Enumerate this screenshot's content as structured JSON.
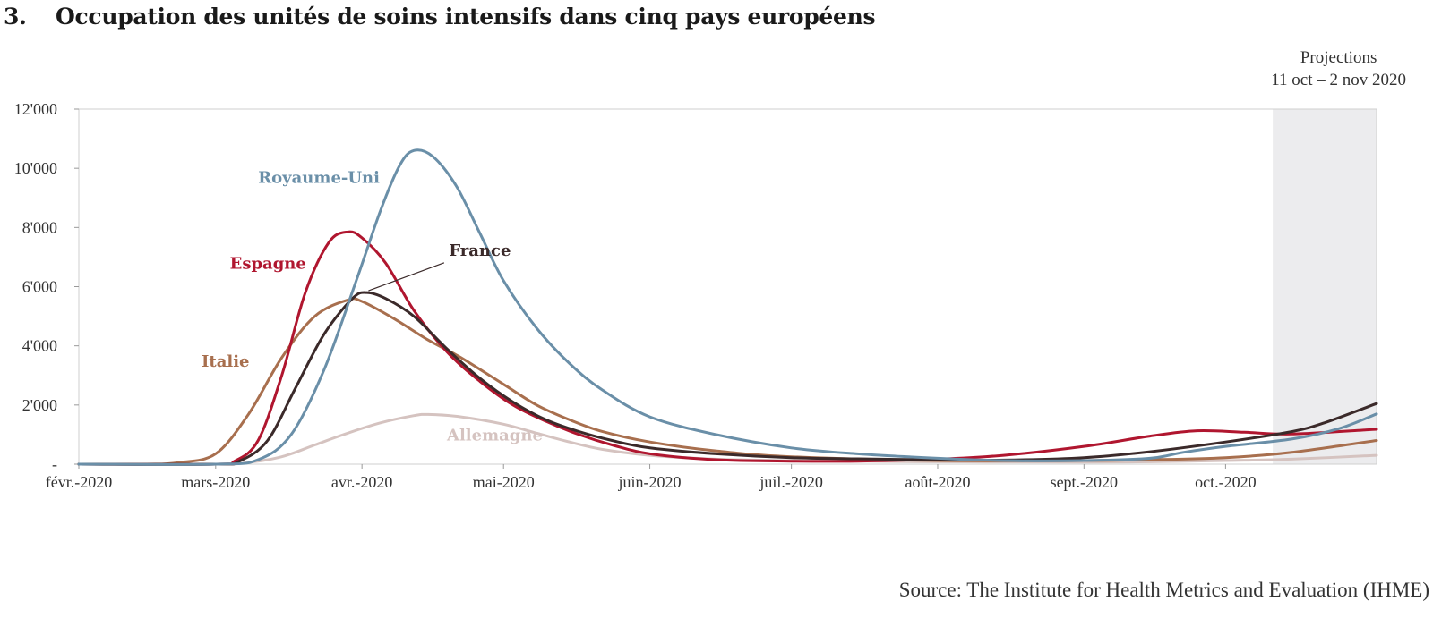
{
  "header": {
    "number": "3.",
    "title": "Occupation des unités de soins intensifs dans cinq pays européens"
  },
  "projection": {
    "line1": "Projections",
    "line2": "11 oct – 2 nov 2020"
  },
  "source": "Source: The Institute for Health Metrics and Evaluation (IHME)",
  "chart_data": {
    "type": "line",
    "title": "Occupation des unités de soins intensifs dans cinq pays européens",
    "xlabel": "",
    "ylabel": "",
    "x_range": [
      "2020-02-01",
      "2020-11-02"
    ],
    "ylim": [
      0,
      12000
    ],
    "y_ticks": [
      0,
      2000,
      4000,
      6000,
      8000,
      10000,
      12000
    ],
    "y_tick_labels": [
      "-",
      "2'000",
      "4'000",
      "6'000",
      "8'000",
      "10'000",
      "12'000"
    ],
    "x_ticks": [
      {
        "date": "2020-02-01",
        "label": "févr.-2020"
      },
      {
        "date": "2020-03-01",
        "label": "mars-2020"
      },
      {
        "date": "2020-04-01",
        "label": "avr.-2020"
      },
      {
        "date": "2020-05-01",
        "label": "mai-2020"
      },
      {
        "date": "2020-06-01",
        "label": "juin-2020"
      },
      {
        "date": "2020-07-01",
        "label": "juil.-2020"
      },
      {
        "date": "2020-08-01",
        "label": "août-2020"
      },
      {
        "date": "2020-09-01",
        "label": "sept.-2020"
      },
      {
        "date": "2020-10-01",
        "label": "oct.-2020"
      }
    ],
    "projection_period": [
      "2020-10-11",
      "2020-11-02"
    ],
    "grid": false,
    "series": [
      {
        "name": "Allemagne",
        "color": "#d5c3c0",
        "points": [
          [
            "2020-02-01",
            0
          ],
          [
            "2020-03-01",
            0
          ],
          [
            "2020-03-08",
            60
          ],
          [
            "2020-03-15",
            250
          ],
          [
            "2020-03-22",
            650
          ],
          [
            "2020-03-29",
            1050
          ],
          [
            "2020-04-05",
            1400
          ],
          [
            "2020-04-12",
            1640
          ],
          [
            "2020-04-15",
            1680
          ],
          [
            "2020-04-22",
            1600
          ],
          [
            "2020-05-01",
            1350
          ],
          [
            "2020-05-08",
            1050
          ],
          [
            "2020-05-15",
            750
          ],
          [
            "2020-05-22",
            500
          ],
          [
            "2020-06-01",
            300
          ],
          [
            "2020-06-15",
            170
          ],
          [
            "2020-07-01",
            120
          ],
          [
            "2020-08-01",
            80
          ],
          [
            "2020-09-01",
            70
          ],
          [
            "2020-09-15",
            80
          ],
          [
            "2020-10-01",
            120
          ],
          [
            "2020-10-15",
            170
          ],
          [
            "2020-11-02",
            300
          ]
        ]
      },
      {
        "name": "Italie",
        "color": "#a86f4e",
        "points": [
          [
            "2020-02-01",
            0
          ],
          [
            "2020-02-15",
            0
          ],
          [
            "2020-02-22",
            50
          ],
          [
            "2020-03-01",
            350
          ],
          [
            "2020-03-08",
            1700
          ],
          [
            "2020-03-15",
            3600
          ],
          [
            "2020-03-22",
            5000
          ],
          [
            "2020-03-29",
            5550
          ],
          [
            "2020-04-01",
            5500
          ],
          [
            "2020-04-08",
            4900
          ],
          [
            "2020-04-15",
            4200
          ],
          [
            "2020-04-22",
            3600
          ],
          [
            "2020-05-01",
            2700
          ],
          [
            "2020-05-08",
            2000
          ],
          [
            "2020-05-15",
            1500
          ],
          [
            "2020-05-22",
            1100
          ],
          [
            "2020-06-01",
            750
          ],
          [
            "2020-06-15",
            450
          ],
          [
            "2020-07-01",
            250
          ],
          [
            "2020-08-01",
            120
          ],
          [
            "2020-09-01",
            120
          ],
          [
            "2020-09-15",
            150
          ],
          [
            "2020-10-01",
            220
          ],
          [
            "2020-10-15",
            400
          ],
          [
            "2020-11-02",
            800
          ]
        ]
      },
      {
        "name": "Espagne",
        "color": "#b0162f",
        "points": [
          [
            "2020-02-01",
            0
          ],
          [
            "2020-03-01",
            0
          ],
          [
            "2020-03-05",
            100
          ],
          [
            "2020-03-10",
            800
          ],
          [
            "2020-03-15",
            3000
          ],
          [
            "2020-03-20",
            5800
          ],
          [
            "2020-03-25",
            7500
          ],
          [
            "2020-03-29",
            7850
          ],
          [
            "2020-04-01",
            7650
          ],
          [
            "2020-04-06",
            6800
          ],
          [
            "2020-04-12",
            5200
          ],
          [
            "2020-04-19",
            3800
          ],
          [
            "2020-04-26",
            2800
          ],
          [
            "2020-05-03",
            2000
          ],
          [
            "2020-05-10",
            1450
          ],
          [
            "2020-05-17",
            1000
          ],
          [
            "2020-05-24",
            650
          ],
          [
            "2020-06-01",
            350
          ],
          [
            "2020-06-15",
            150
          ],
          [
            "2020-07-01",
            100
          ],
          [
            "2020-07-15",
            100
          ],
          [
            "2020-08-01",
            170
          ],
          [
            "2020-08-15",
            300
          ],
          [
            "2020-09-01",
            600
          ],
          [
            "2020-09-15",
            950
          ],
          [
            "2020-09-25",
            1130
          ],
          [
            "2020-10-05",
            1080
          ],
          [
            "2020-10-15",
            1020
          ],
          [
            "2020-11-02",
            1180
          ]
        ]
      },
      {
        "name": "France",
        "color": "#3b2a2a",
        "points": [
          [
            "2020-02-01",
            0
          ],
          [
            "2020-03-01",
            0
          ],
          [
            "2020-03-06",
            100
          ],
          [
            "2020-03-12",
            800
          ],
          [
            "2020-03-18",
            2600
          ],
          [
            "2020-03-24",
            4400
          ],
          [
            "2020-03-30",
            5600
          ],
          [
            "2020-04-02",
            5800
          ],
          [
            "2020-04-06",
            5600
          ],
          [
            "2020-04-12",
            5000
          ],
          [
            "2020-04-19",
            3900
          ],
          [
            "2020-04-26",
            2900
          ],
          [
            "2020-05-03",
            2100
          ],
          [
            "2020-05-10",
            1500
          ],
          [
            "2020-05-17",
            1100
          ],
          [
            "2020-05-24",
            800
          ],
          [
            "2020-06-01",
            550
          ],
          [
            "2020-06-15",
            350
          ],
          [
            "2020-07-01",
            220
          ],
          [
            "2020-07-15",
            180
          ],
          [
            "2020-08-01",
            150
          ],
          [
            "2020-08-15",
            140
          ],
          [
            "2020-09-01",
            220
          ],
          [
            "2020-09-15",
            420
          ],
          [
            "2020-10-01",
            750
          ],
          [
            "2020-10-15",
            1100
          ],
          [
            "2020-10-22",
            1400
          ],
          [
            "2020-11-02",
            2050
          ]
        ]
      },
      {
        "name": "Royaume-Uni",
        "color": "#6a8fa8",
        "points": [
          [
            "2020-02-01",
            0
          ],
          [
            "2020-03-01",
            0
          ],
          [
            "2020-03-10",
            150
          ],
          [
            "2020-03-17",
            1000
          ],
          [
            "2020-03-24",
            3200
          ],
          [
            "2020-03-31",
            6300
          ],
          [
            "2020-04-05",
            8600
          ],
          [
            "2020-04-09",
            10100
          ],
          [
            "2020-04-12",
            10600
          ],
          [
            "2020-04-16",
            10400
          ],
          [
            "2020-04-21",
            9400
          ],
          [
            "2020-04-26",
            7800
          ],
          [
            "2020-05-01",
            6200
          ],
          [
            "2020-05-08",
            4600
          ],
          [
            "2020-05-15",
            3400
          ],
          [
            "2020-05-22",
            2500
          ],
          [
            "2020-06-01",
            1600
          ],
          [
            "2020-06-15",
            1000
          ],
          [
            "2020-07-01",
            550
          ],
          [
            "2020-07-15",
            350
          ],
          [
            "2020-08-01",
            200
          ],
          [
            "2020-08-15",
            120
          ],
          [
            "2020-09-01",
            120
          ],
          [
            "2020-09-15",
            200
          ],
          [
            "2020-09-22",
            400
          ],
          [
            "2020-10-01",
            600
          ],
          [
            "2020-10-15",
            850
          ],
          [
            "2020-10-25",
            1200
          ],
          [
            "2020-11-02",
            1700
          ]
        ]
      }
    ],
    "annotations": [
      {
        "text": "Royaume-Uni",
        "series": "Royaume-Uni",
        "date": "2020-03-10",
        "value": 9500
      },
      {
        "text": "Espagne",
        "series": "Espagne",
        "date": "2020-03-04",
        "value": 6600
      },
      {
        "text": "France",
        "series": "France",
        "date": "2020-04-26",
        "value": 7050
      },
      {
        "text": "Italie",
        "series": "Italie",
        "date": "2020-02-27",
        "value": 3300
      },
      {
        "text": "Allemagne",
        "series": "Allemagne",
        "date": "2020-04-19",
        "value": 800
      }
    ]
  }
}
